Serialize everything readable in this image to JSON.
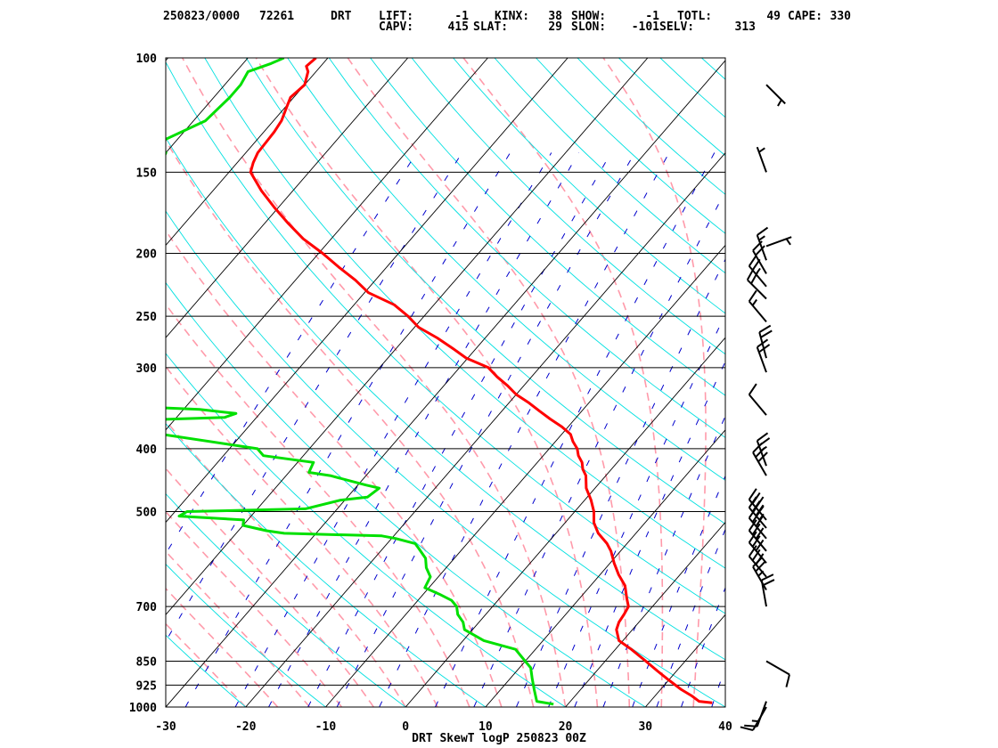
{
  "header": {
    "line1": [
      {
        "label": "250823/0000",
        "value": ""
      },
      {
        "label": "72261",
        "value": ""
      },
      {
        "label": "DRT",
        "value": ""
      },
      {
        "label": "LIFT:",
        "value": "-1"
      },
      {
        "label": "KINX:",
        "value": "38"
      },
      {
        "label": "SHOW:",
        "value": "-1"
      },
      {
        "label": "TOTL:",
        "value": "49"
      },
      {
        "label": "CAPE:",
        "value": "330"
      }
    ],
    "line2": [
      {
        "label": "CAPV:",
        "value": "415"
      },
      {
        "label": "SLAT:",
        "value": "29"
      },
      {
        "label": "SLON:",
        "value": "-101"
      },
      {
        "label": "SELV:",
        "value": "313"
      }
    ]
  },
  "chart_data": {
    "type": "line",
    "title": "DRT SkewT logP 250823 00Z",
    "xlabel": "",
    "ylabel": "",
    "x_unit": "degC",
    "y_unit": "hPa",
    "xlim": [
      -30,
      40
    ],
    "ylim": [
      1000,
      100
    ],
    "y_scale": "log",
    "x_ticks": [
      -30,
      -20,
      -10,
      0,
      10,
      20,
      30,
      40
    ],
    "y_ticks": [
      100,
      150,
      200,
      250,
      300,
      400,
      500,
      700,
      850,
      925,
      1000
    ],
    "series": [
      {
        "name": "",
        "color": "#ff0000",
        "points": [
          [
            37.9,
            985
          ],
          [
            36.1,
            980
          ],
          [
            34.5,
            960
          ],
          [
            32.6,
            940
          ],
          [
            29.7,
            905
          ],
          [
            27.6,
            880
          ],
          [
            25.1,
            850
          ],
          [
            22.0,
            815
          ],
          [
            19.5,
            790
          ],
          [
            18.0,
            760
          ],
          [
            17.5,
            740
          ],
          [
            17.3,
            720
          ],
          [
            17.0,
            700
          ],
          [
            15.9,
            680
          ],
          [
            14.3,
            650
          ],
          [
            12.3,
            625
          ],
          [
            10.5,
            600
          ],
          [
            8.8,
            575
          ],
          [
            7.5,
            560
          ],
          [
            5.3,
            540
          ],
          [
            3.6,
            520
          ],
          [
            2.4,
            500
          ],
          [
            0.8,
            480
          ],
          [
            -1.1,
            460
          ],
          [
            -2.5,
            440
          ],
          [
            -3.6,
            430
          ],
          [
            -4.4,
            420
          ],
          [
            -5.6,
            410
          ],
          [
            -6.5,
            400
          ],
          [
            -7.8,
            390
          ],
          [
            -8.9,
            380
          ],
          [
            -10.8,
            370
          ],
          [
            -13.1,
            360
          ],
          [
            -15.3,
            350
          ],
          [
            -17.5,
            340
          ],
          [
            -20.0,
            330
          ],
          [
            -22.0,
            320
          ],
          [
            -24.3,
            310
          ],
          [
            -26.4,
            300
          ],
          [
            -30.2,
            290
          ],
          [
            -33.0,
            280
          ],
          [
            -36.0,
            270
          ],
          [
            -39.5,
            260
          ],
          [
            -42.0,
            250
          ],
          [
            -45.0,
            240
          ],
          [
            -49.5,
            230
          ],
          [
            -52.5,
            220
          ],
          [
            -56.0,
            210
          ],
          [
            -59.5,
            200
          ],
          [
            -63.5,
            190
          ],
          [
            -67.0,
            180
          ],
          [
            -70.5,
            170
          ],
          [
            -74.0,
            160
          ],
          [
            -77.3,
            150
          ],
          [
            -78.0,
            145
          ],
          [
            -78.5,
            140
          ],
          [
            -78.6,
            135
          ],
          [
            -78.7,
            130
          ],
          [
            -79.0,
            125
          ],
          [
            -79.7,
            120
          ],
          [
            -80.4,
            115
          ],
          [
            -80.0,
            110
          ],
          [
            -81.0,
            105
          ],
          [
            -81.8,
            103
          ],
          [
            -81.5,
            100
          ]
        ]
      },
      {
        "name": "",
        "color": "#00e000",
        "points": [
          [
            18.2,
            990
          ],
          [
            15.8,
            980
          ],
          [
            14.2,
            940
          ],
          [
            12.8,
            905
          ],
          [
            11.4,
            870
          ],
          [
            10.0,
            850
          ],
          [
            7.5,
            815
          ],
          [
            2.6,
            790
          ],
          [
            -1.0,
            760
          ],
          [
            -2.0,
            740
          ],
          [
            -3.5,
            720
          ],
          [
            -4.5,
            700
          ],
          [
            -5.8,
            685
          ],
          [
            -8.0,
            670
          ],
          [
            -10.5,
            655
          ],
          [
            -11.0,
            630
          ],
          [
            -12.5,
            610
          ],
          [
            -13.6,
            590
          ],
          [
            -15.5,
            570
          ],
          [
            -16.5,
            560
          ],
          [
            -19.5,
            550
          ],
          [
            -21.5,
            545
          ],
          [
            -34.0,
            540
          ],
          [
            -36.5,
            535
          ],
          [
            -40.0,
            525
          ],
          [
            -40.5,
            515
          ],
          [
            -49.0,
            508
          ],
          [
            -48.5,
            500
          ],
          [
            -34.0,
            495
          ],
          [
            -30.5,
            480
          ],
          [
            -27.5,
            475
          ],
          [
            -27.0,
            460
          ],
          [
            -29.0,
            455
          ],
          [
            -34.5,
            440
          ],
          [
            -37.5,
            435
          ],
          [
            -38.0,
            420
          ],
          [
            -45.0,
            410
          ],
          [
            -46.5,
            400
          ],
          [
            -60.0,
            380
          ],
          [
            -69.5,
            370
          ],
          [
            -69.5,
            363
          ],
          [
            -54.0,
            358
          ],
          [
            -53.0,
            353
          ],
          [
            -58.0,
            348
          ],
          [
            -65.0,
            345
          ],
          [
            -74.5,
            343
          ],
          [
            -82.5,
            305
          ],
          [
            -85.0,
            300
          ],
          [
            -85.0,
            285
          ],
          [
            -84.5,
            270
          ],
          [
            -84.5,
            250
          ],
          [
            -85.0,
            230
          ],
          [
            -86.0,
            220
          ],
          [
            -86.8,
            200
          ],
          [
            -87.5,
            170
          ],
          [
            -89.0,
            150
          ],
          [
            -90.0,
            140
          ],
          [
            -92.0,
            135
          ],
          [
            -88.5,
            125
          ],
          [
            -88.0,
            115
          ],
          [
            -88.0,
            110
          ],
          [
            -88.5,
            105
          ],
          [
            -86.5,
            102
          ],
          [
            -85.5,
            100
          ]
        ]
      }
    ],
    "wind_barbs": [
      {
        "p": 1000,
        "dir": 210,
        "speed": 10
      },
      {
        "p": 980,
        "dir": 200,
        "speed": 15
      },
      {
        "p": 850,
        "dir": 120,
        "speed": 10
      },
      {
        "p": 700,
        "dir": 350,
        "speed": 20
      },
      {
        "p": 660,
        "dir": 330,
        "speed": 25
      },
      {
        "p": 630,
        "dir": 320,
        "speed": 30
      },
      {
        "p": 600,
        "dir": 320,
        "speed": 30
      },
      {
        "p": 575,
        "dir": 320,
        "speed": 30
      },
      {
        "p": 550,
        "dir": 320,
        "speed": 30
      },
      {
        "p": 530,
        "dir": 320,
        "speed": 35
      },
      {
        "p": 515,
        "dir": 320,
        "speed": 35
      },
      {
        "p": 440,
        "dir": 330,
        "speed": 30
      },
      {
        "p": 425,
        "dir": 340,
        "speed": 25
      },
      {
        "p": 355,
        "dir": 320,
        "speed": 10
      },
      {
        "p": 305,
        "dir": 340,
        "speed": 20
      },
      {
        "p": 290,
        "dir": 345,
        "speed": 20
      },
      {
        "p": 255,
        "dir": 320,
        "speed": 15
      },
      {
        "p": 235,
        "dir": 315,
        "speed": 20
      },
      {
        "p": 225,
        "dir": 320,
        "speed": 25
      },
      {
        "p": 215,
        "dir": 330,
        "speed": 20
      },
      {
        "p": 205,
        "dir": 340,
        "speed": 15
      },
      {
        "p": 195,
        "dir": 70,
        "speed": 5
      },
      {
        "p": 150,
        "dir": 340,
        "speed": 5
      },
      {
        "p": 110,
        "dir": 135,
        "speed": 5
      }
    ],
    "background": {
      "isotherms_color": "#000000",
      "dry_adiabat_color": "#00e0e0",
      "moist_adiabat_color": "#ff9aaa",
      "mixing_ratio_color": "#0000cc",
      "grid": true
    }
  }
}
